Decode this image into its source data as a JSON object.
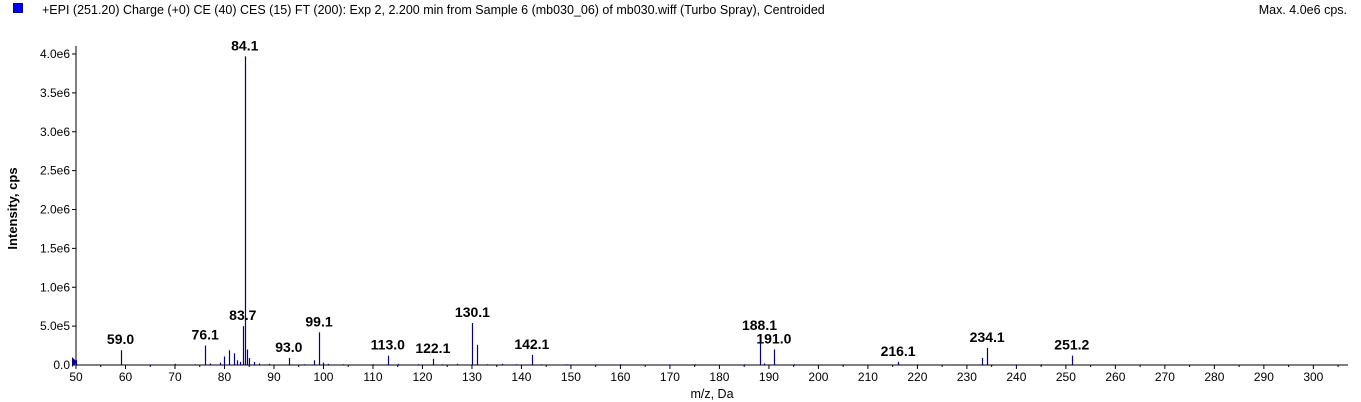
{
  "header": {
    "title": "+EPI (251.20) Charge (+0) CE (40) CES (15) FT (200): Exp 2, 2.200 min from Sample 6 (mb030_06) of mb030.wiff (Turbo Spray), Centroided",
    "max_label": "Max. 4.0e6 cps."
  },
  "colors": {
    "series": "#00008b",
    "legend": "#0000ff",
    "axis": "#000000"
  },
  "chart_data": {
    "type": "bar",
    "title": "+EPI (251.20) Charge (+0) CE (40) CES (15) FT (200): Exp 2, 2.200 min from Sample 6 (mb030_06) of mb030.wiff (Turbo Spray), Centroided",
    "xlabel": "m/z, Da",
    "ylabel": "Intensity, cps",
    "xlim": [
      50,
      307
    ],
    "ylim": [
      0,
      4000000
    ],
    "x_ticks": [
      50,
      60,
      70,
      80,
      90,
      100,
      110,
      120,
      130,
      140,
      150,
      160,
      170,
      180,
      190,
      200,
      210,
      220,
      230,
      240,
      250,
      260,
      270,
      280,
      290,
      300
    ],
    "x_tick_labels": [
      "50",
      "60",
      "70",
      "80",
      "90",
      "100",
      "110",
      "120",
      "130",
      "140",
      "150",
      "160",
      "170",
      "180",
      "190",
      "200",
      "210",
      "220",
      "230",
      "240",
      "250",
      "260",
      "270",
      "280",
      "290",
      "300"
    ],
    "y_ticks": [
      0,
      500000,
      1000000,
      1500000,
      2000000,
      2500000,
      3000000,
      3500000,
      4000000
    ],
    "y_tick_labels": [
      "0.0",
      "5.0e5",
      "1.0e6",
      "1.5e6",
      "2.0e6",
      "2.5e6",
      "3.0e6",
      "3.5e6",
      "4.0e6"
    ],
    "grid": false,
    "legend": "top-left",
    "peaks": [
      {
        "x": 50.1,
        "y": 60000
      },
      {
        "x": 59.0,
        "y": 190000
      },
      {
        "x": 65.0,
        "y": 8000
      },
      {
        "x": 70.0,
        "y": 15000
      },
      {
        "x": 74.0,
        "y": 10000
      },
      {
        "x": 76.1,
        "y": 250000
      },
      {
        "x": 77.0,
        "y": 20000
      },
      {
        "x": 79.0,
        "y": 30000
      },
      {
        "x": 80.0,
        "y": 110000
      },
      {
        "x": 81.0,
        "y": 190000
      },
      {
        "x": 82.0,
        "y": 150000
      },
      {
        "x": 82.5,
        "y": 60000
      },
      {
        "x": 83.2,
        "y": 40000
      },
      {
        "x": 83.7,
        "y": 500000
      },
      {
        "x": 84.1,
        "y": 3970000
      },
      {
        "x": 84.5,
        "y": 200000
      },
      {
        "x": 85.0,
        "y": 90000
      },
      {
        "x": 86.0,
        "y": 40000
      },
      {
        "x": 87.0,
        "y": 20000
      },
      {
        "x": 89.0,
        "y": 15000
      },
      {
        "x": 93.0,
        "y": 90000
      },
      {
        "x": 96.0,
        "y": 10000
      },
      {
        "x": 98.0,
        "y": 60000
      },
      {
        "x": 99.1,
        "y": 420000
      },
      {
        "x": 100.0,
        "y": 30000
      },
      {
        "x": 101.0,
        "y": 15000
      },
      {
        "x": 104.0,
        "y": 10000
      },
      {
        "x": 110.0,
        "y": 10000
      },
      {
        "x": 113.0,
        "y": 120000
      },
      {
        "x": 115.0,
        "y": 15000
      },
      {
        "x": 119.0,
        "y": 10000
      },
      {
        "x": 122.1,
        "y": 80000
      },
      {
        "x": 124.0,
        "y": 10000
      },
      {
        "x": 127.0,
        "y": 15000
      },
      {
        "x": 130.1,
        "y": 540000
      },
      {
        "x": 131.0,
        "y": 260000
      },
      {
        "x": 133.0,
        "y": 10000
      },
      {
        "x": 136.0,
        "y": 15000
      },
      {
        "x": 139.0,
        "y": 10000
      },
      {
        "x": 142.1,
        "y": 130000
      },
      {
        "x": 144.0,
        "y": 10000
      },
      {
        "x": 149.0,
        "y": 10000
      },
      {
        "x": 155.0,
        "y": 8000
      },
      {
        "x": 160.0,
        "y": 10000
      },
      {
        "x": 170.0,
        "y": 8000
      },
      {
        "x": 175.0,
        "y": 10000
      },
      {
        "x": 185.0,
        "y": 10000
      },
      {
        "x": 188.1,
        "y": 370000
      },
      {
        "x": 189.0,
        "y": 20000
      },
      {
        "x": 191.0,
        "y": 200000
      },
      {
        "x": 195.0,
        "y": 10000
      },
      {
        "x": 205.0,
        "y": 8000
      },
      {
        "x": 216.1,
        "y": 40000
      },
      {
        "x": 220.0,
        "y": 8000
      },
      {
        "x": 228.0,
        "y": 8000
      },
      {
        "x": 233.0,
        "y": 90000
      },
      {
        "x": 234.1,
        "y": 220000
      },
      {
        "x": 240.0,
        "y": 8000
      },
      {
        "x": 245.0,
        "y": 10000
      },
      {
        "x": 251.2,
        "y": 120000
      }
    ],
    "annotations": [
      {
        "x": 59.0,
        "text": "59.0"
      },
      {
        "x": 76.1,
        "text": "76.1"
      },
      {
        "x": 83.7,
        "text": "83.7"
      },
      {
        "x": 84.1,
        "text": "84.1"
      },
      {
        "x": 93.0,
        "text": "93.0"
      },
      {
        "x": 99.1,
        "text": "99.1"
      },
      {
        "x": 113.0,
        "text": "113.0"
      },
      {
        "x": 122.1,
        "text": "122.1"
      },
      {
        "x": 130.1,
        "text": "130.1"
      },
      {
        "x": 142.1,
        "text": "142.1"
      },
      {
        "x": 188.1,
        "text": "188.1"
      },
      {
        "x": 191.0,
        "text": "191.0"
      },
      {
        "x": 216.1,
        "text": "216.1"
      },
      {
        "x": 234.1,
        "text": "234.1"
      },
      {
        "x": 251.2,
        "text": "251.2"
      }
    ]
  }
}
